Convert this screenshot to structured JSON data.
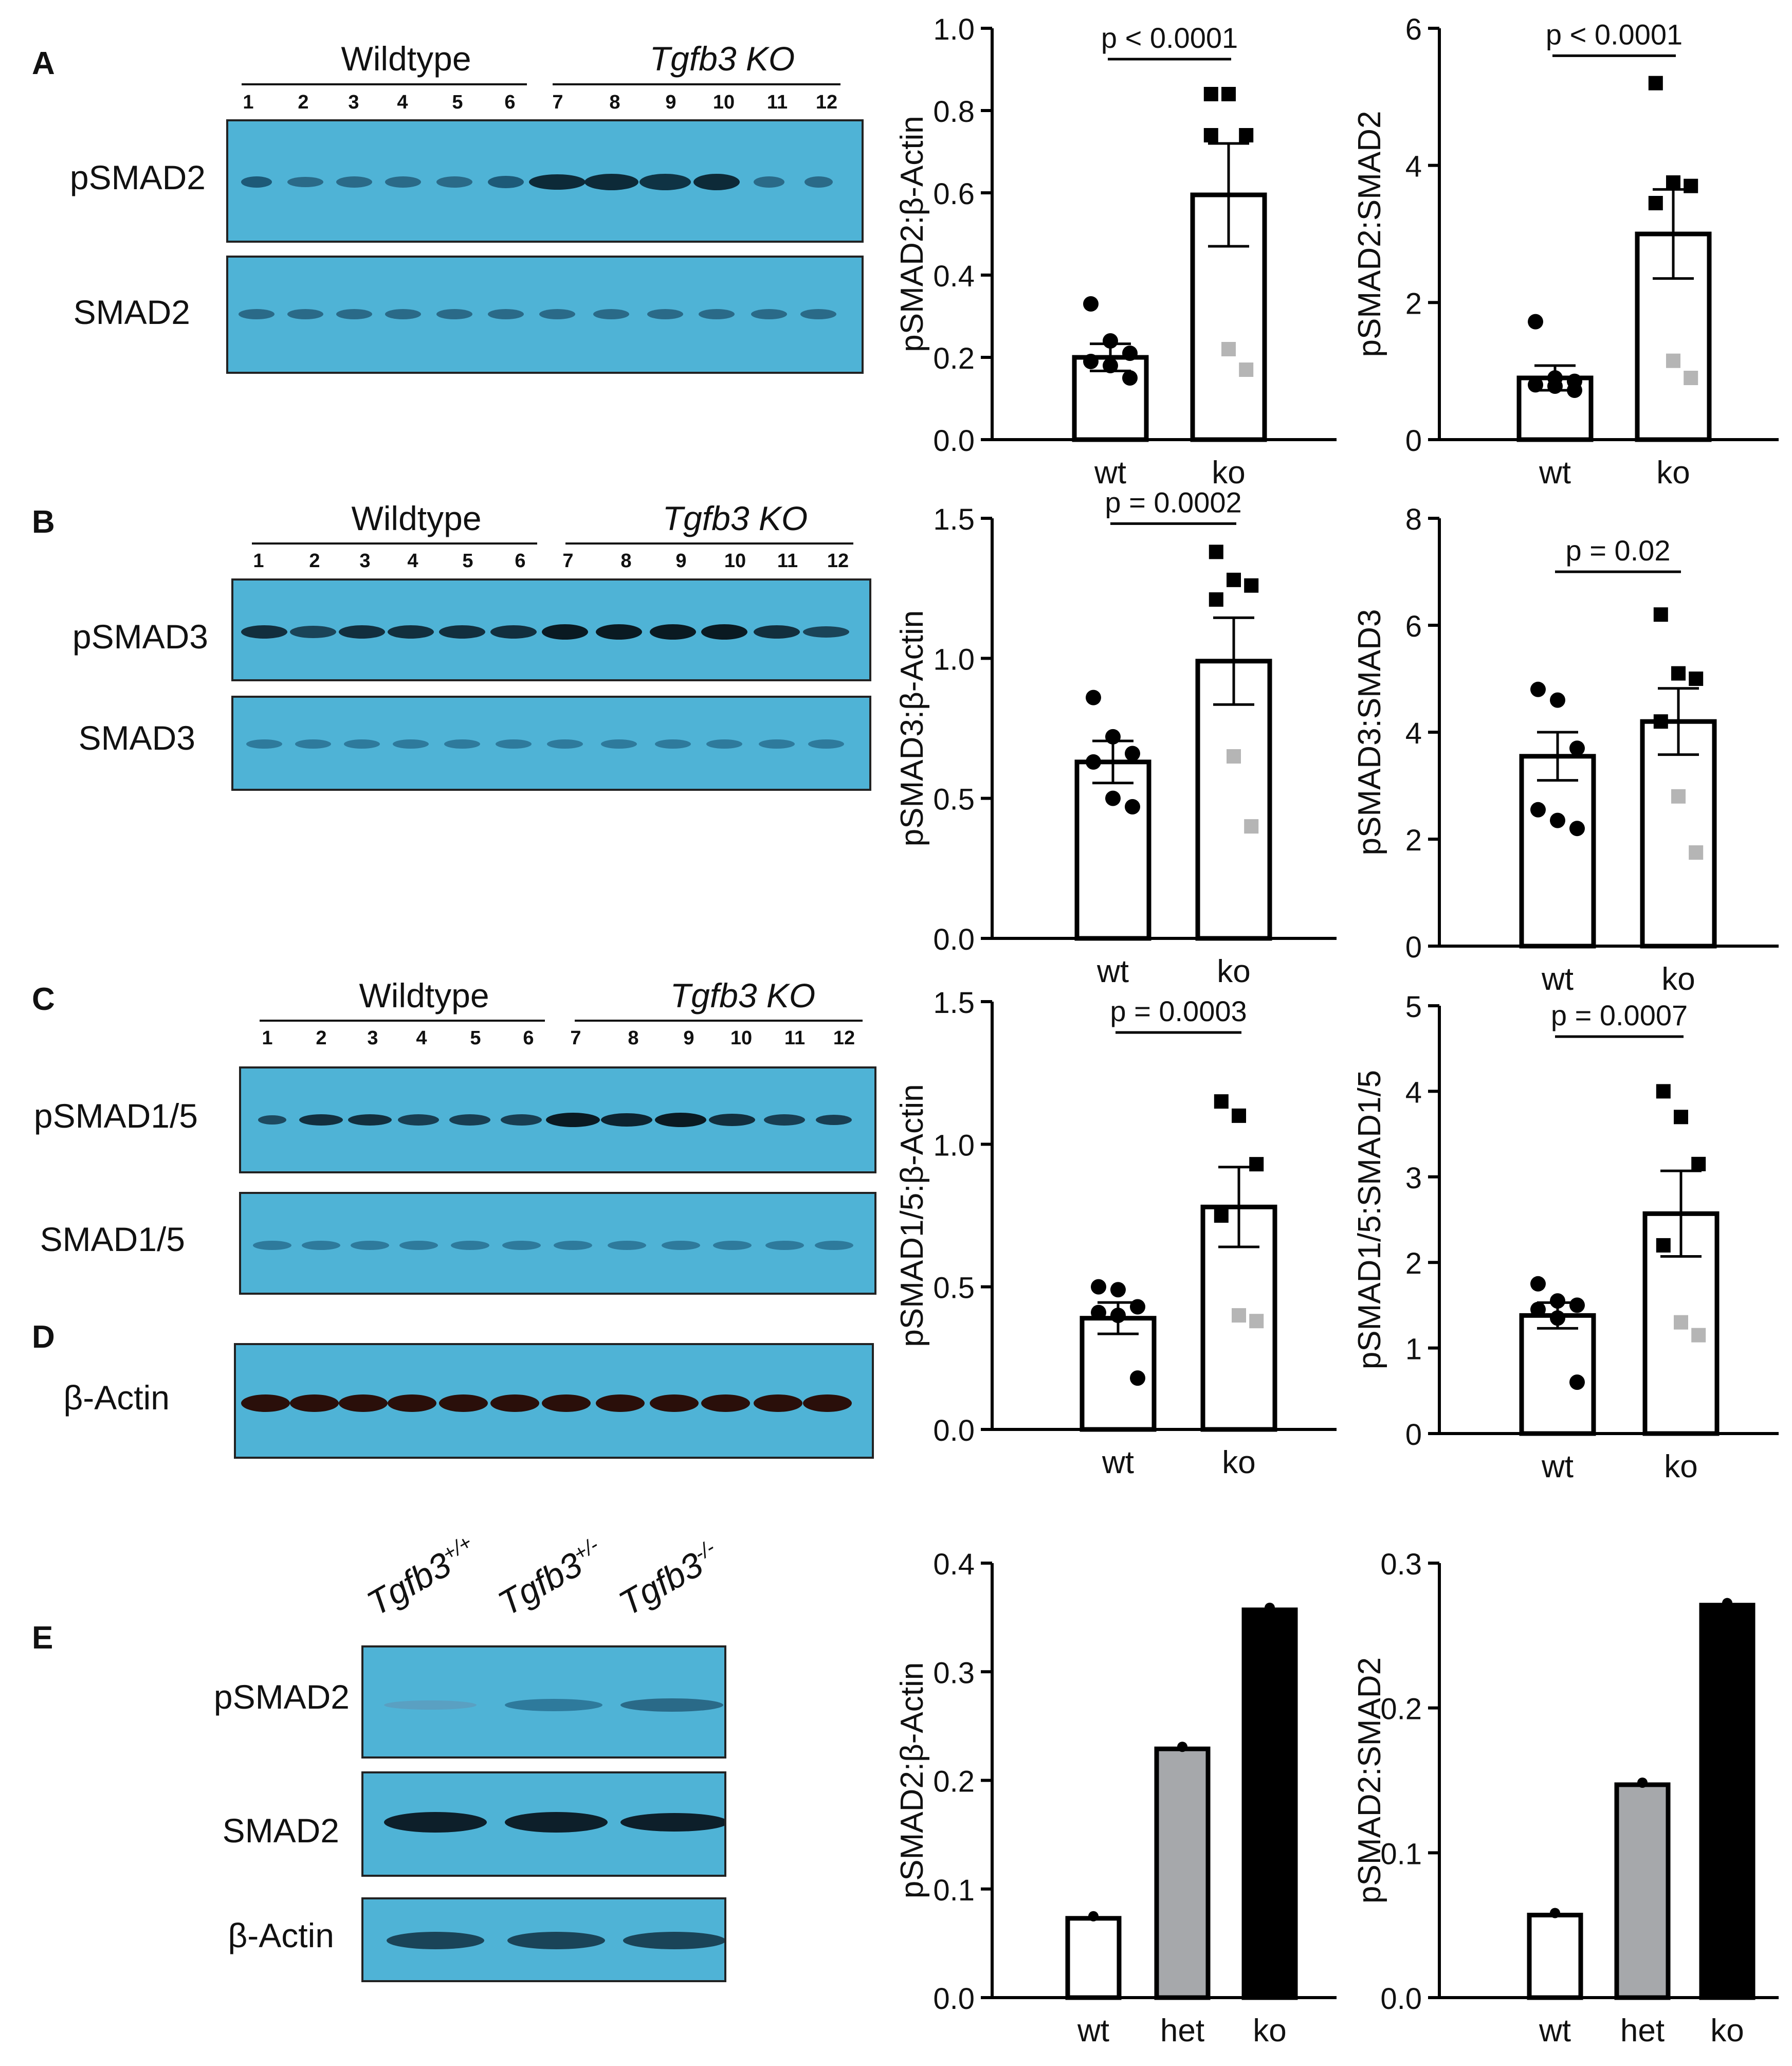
{
  "panels": {
    "A": {
      "letter": "A",
      "groups": [
        "Wildtype",
        "Tgfb3 KO"
      ],
      "lanes": [
        "1",
        "2",
        "3",
        "4",
        "5",
        "6",
        "7",
        "8",
        "9",
        "10",
        "11",
        "12"
      ],
      "blots": [
        "pSMAD2",
        "SMAD2"
      ]
    },
    "B": {
      "letter": "B",
      "groups": [
        "Wildtype",
        "Tgfb3 KO"
      ],
      "lanes": [
        "1",
        "2",
        "3",
        "4",
        "5",
        "6",
        "7",
        "8",
        "9",
        "10",
        "11",
        "12"
      ],
      "blots": [
        "pSMAD3",
        "SMAD3"
      ]
    },
    "C": {
      "letter": "C",
      "groups": [
        "Wildtype",
        "Tgfb3 KO"
      ],
      "lanes": [
        "1",
        "2",
        "3",
        "4",
        "5",
        "6",
        "7",
        "8",
        "9",
        "10",
        "11",
        "12"
      ],
      "blots": [
        "pSMAD1/5",
        "SMAD1/5"
      ]
    },
    "D": {
      "letter": "D",
      "blots": [
        "β-Actin"
      ]
    },
    "E": {
      "letter": "E",
      "genotypes": [
        {
          "base": "Tgfb3",
          "sup": "+/+"
        },
        {
          "base": "Tgfb3",
          "sup": "+/-"
        },
        {
          "base": "Tgfb3",
          "sup": "-/-"
        }
      ],
      "blots": [
        "pSMAD2",
        "SMAD2",
        "β-Actin"
      ]
    }
  },
  "chart_data": [
    {
      "id": "A1",
      "type": "bar",
      "categories": [
        "wt",
        "ko"
      ],
      "values": [
        0.2,
        0.595
      ],
      "sem": [
        0.033,
        0.125
      ],
      "ylabel": "pSMAD2:β-Actin",
      "ylim": [
        0,
        1.0
      ],
      "ticks": [
        "0.0",
        "0.2",
        "0.4",
        "0.6",
        "0.8",
        "1.0"
      ],
      "tick_values": [
        0,
        0.2,
        0.4,
        0.6,
        0.8,
        1.0
      ],
      "p_label": "p < 0.0001",
      "points": [
        [
          0.33,
          0.24,
          0.21,
          0.19,
          0.18,
          0.15
        ],
        [
          0.84,
          0.84,
          0.74,
          0.74,
          0.22,
          0.17
        ]
      ],
      "point_colors": [
        [
          "k",
          "k",
          "k",
          "k",
          "k",
          "k"
        ],
        [
          "k",
          "k",
          "k",
          "k",
          "g",
          "g"
        ]
      ]
    },
    {
      "id": "A2",
      "type": "bar",
      "categories": [
        "wt",
        "ko"
      ],
      "values": [
        0.9,
        3.0
      ],
      "sem": [
        0.18,
        0.65
      ],
      "ylabel": "pSMAD2:SMAD2",
      "ylim": [
        0,
        6
      ],
      "ticks": [
        "0",
        "2",
        "4",
        "6"
      ],
      "tick_values": [
        0,
        2,
        4,
        6
      ],
      "p_label": "p < 0.0001",
      "points": [
        [
          1.72,
          0.9,
          0.85,
          0.8,
          0.78,
          0.72
        ],
        [
          5.2,
          3.75,
          3.7,
          3.45,
          1.15,
          0.9
        ]
      ],
      "point_colors": [
        [
          "k",
          "k",
          "k",
          "k",
          "k",
          "k"
        ],
        [
          "k",
          "k",
          "k",
          "k",
          "g",
          "g"
        ]
      ]
    },
    {
      "id": "B1",
      "type": "bar",
      "categories": [
        "wt",
        "ko"
      ],
      "values": [
        0.63,
        0.99
      ],
      "sem": [
        0.075,
        0.155
      ],
      "ylabel": "pSMAD3:β-Actin",
      "ylim": [
        0,
        1.5
      ],
      "ticks": [
        "0.0",
        "0.5",
        "1.0",
        "1.5"
      ],
      "tick_values": [
        0,
        0.5,
        1.0,
        1.5
      ],
      "p_label": "p = 0.0002",
      "points": [
        [
          0.86,
          0.72,
          0.66,
          0.63,
          0.5,
          0.47
        ],
        [
          1.38,
          1.28,
          1.26,
          1.21,
          0.65,
          0.4
        ]
      ],
      "point_colors": [
        [
          "k",
          "k",
          "k",
          "k",
          "k",
          "k"
        ],
        [
          "k",
          "k",
          "k",
          "k",
          "g",
          "g"
        ]
      ]
    },
    {
      "id": "B2",
      "type": "bar",
      "categories": [
        "wt",
        "ko"
      ],
      "values": [
        3.55,
        4.2
      ],
      "sem": [
        0.45,
        0.62
      ],
      "ylabel": "pSMAD3:SMAD3",
      "ylim": [
        0,
        8
      ],
      "ticks": [
        "0",
        "2",
        "4",
        "6",
        "8"
      ],
      "tick_values": [
        0,
        2,
        4,
        6,
        8
      ],
      "p_label": "p = 0.02",
      "points": [
        [
          4.8,
          4.6,
          3.7,
          2.55,
          2.35,
          2.2
        ],
        [
          6.2,
          5.1,
          5.0,
          4.2,
          2.8,
          1.75
        ]
      ],
      "point_colors": [
        [
          "k",
          "k",
          "k",
          "k",
          "k",
          "k"
        ],
        [
          "k",
          "k",
          "k",
          "k",
          "g",
          "g"
        ]
      ]
    },
    {
      "id": "C1",
      "type": "bar",
      "categories": [
        "wt",
        "ko"
      ],
      "values": [
        0.39,
        0.78
      ],
      "sem": [
        0.055,
        0.14
      ],
      "ylabel": "pSMAD1/5:β-Actin",
      "ylim": [
        0,
        1.5
      ],
      "ticks": [
        "0.0",
        "0.5",
        "1.0",
        "1.5"
      ],
      "tick_values": [
        0,
        0.5,
        1.0,
        1.5
      ],
      "p_label": "p = 0.0003",
      "points": [
        [
          0.5,
          0.49,
          0.43,
          0.41,
          0.4,
          0.18
        ],
        [
          1.15,
          1.1,
          0.93,
          0.75,
          0.4,
          0.38
        ]
      ],
      "point_colors": [
        [
          "k",
          "k",
          "k",
          "k",
          "k",
          "k"
        ],
        [
          "k",
          "k",
          "k",
          "k",
          "g",
          "g"
        ]
      ]
    },
    {
      "id": "C2",
      "type": "bar",
      "categories": [
        "wt",
        "ko"
      ],
      "values": [
        1.38,
        2.57
      ],
      "sem": [
        0.15,
        0.5
      ],
      "ylabel": "pSMAD1/5:SMAD1/5",
      "ylim": [
        0,
        5
      ],
      "ticks": [
        "0",
        "1",
        "2",
        "3",
        "4",
        "5"
      ],
      "tick_values": [
        0,
        1,
        2,
        3,
        4,
        5
      ],
      "p_label": "p = 0.0007",
      "points": [
        [
          1.75,
          1.55,
          1.5,
          1.45,
          1.35,
          0.6
        ],
        [
          4.0,
          3.7,
          3.15,
          2.2,
          1.3,
          1.15
        ]
      ],
      "point_colors": [
        [
          "k",
          "k",
          "k",
          "k",
          "k",
          "k"
        ],
        [
          "k",
          "k",
          "k",
          "k",
          "g",
          "g"
        ]
      ]
    },
    {
      "id": "E1",
      "type": "bar",
      "categories": [
        "wt",
        "het",
        "ko"
      ],
      "values": [
        0.073,
        0.229,
        0.357
      ],
      "bar_colors": [
        "#ffffff",
        "#a6a8ab",
        "#000000"
      ],
      "ylabel": "pSMAD2:β-Actin",
      "ylim": [
        0,
        0.4
      ],
      "ticks": [
        "0.0",
        "0.1",
        "0.2",
        "0.3",
        "0.4"
      ],
      "tick_values": [
        0,
        0.1,
        0.2,
        0.3,
        0.4
      ]
    },
    {
      "id": "E2",
      "type": "bar",
      "categories": [
        "wt",
        "het",
        "ko"
      ],
      "values": [
        0.057,
        0.147,
        0.271
      ],
      "bar_colors": [
        "#ffffff",
        "#a6a8ab",
        "#000000"
      ],
      "ylabel": "pSMAD2:SMAD2",
      "ylim": [
        0,
        0.3
      ],
      "ticks": [
        "0.0",
        "0.1",
        "0.2",
        "0.3"
      ],
      "tick_values": [
        0,
        0.1,
        0.2,
        0.3
      ]
    }
  ]
}
